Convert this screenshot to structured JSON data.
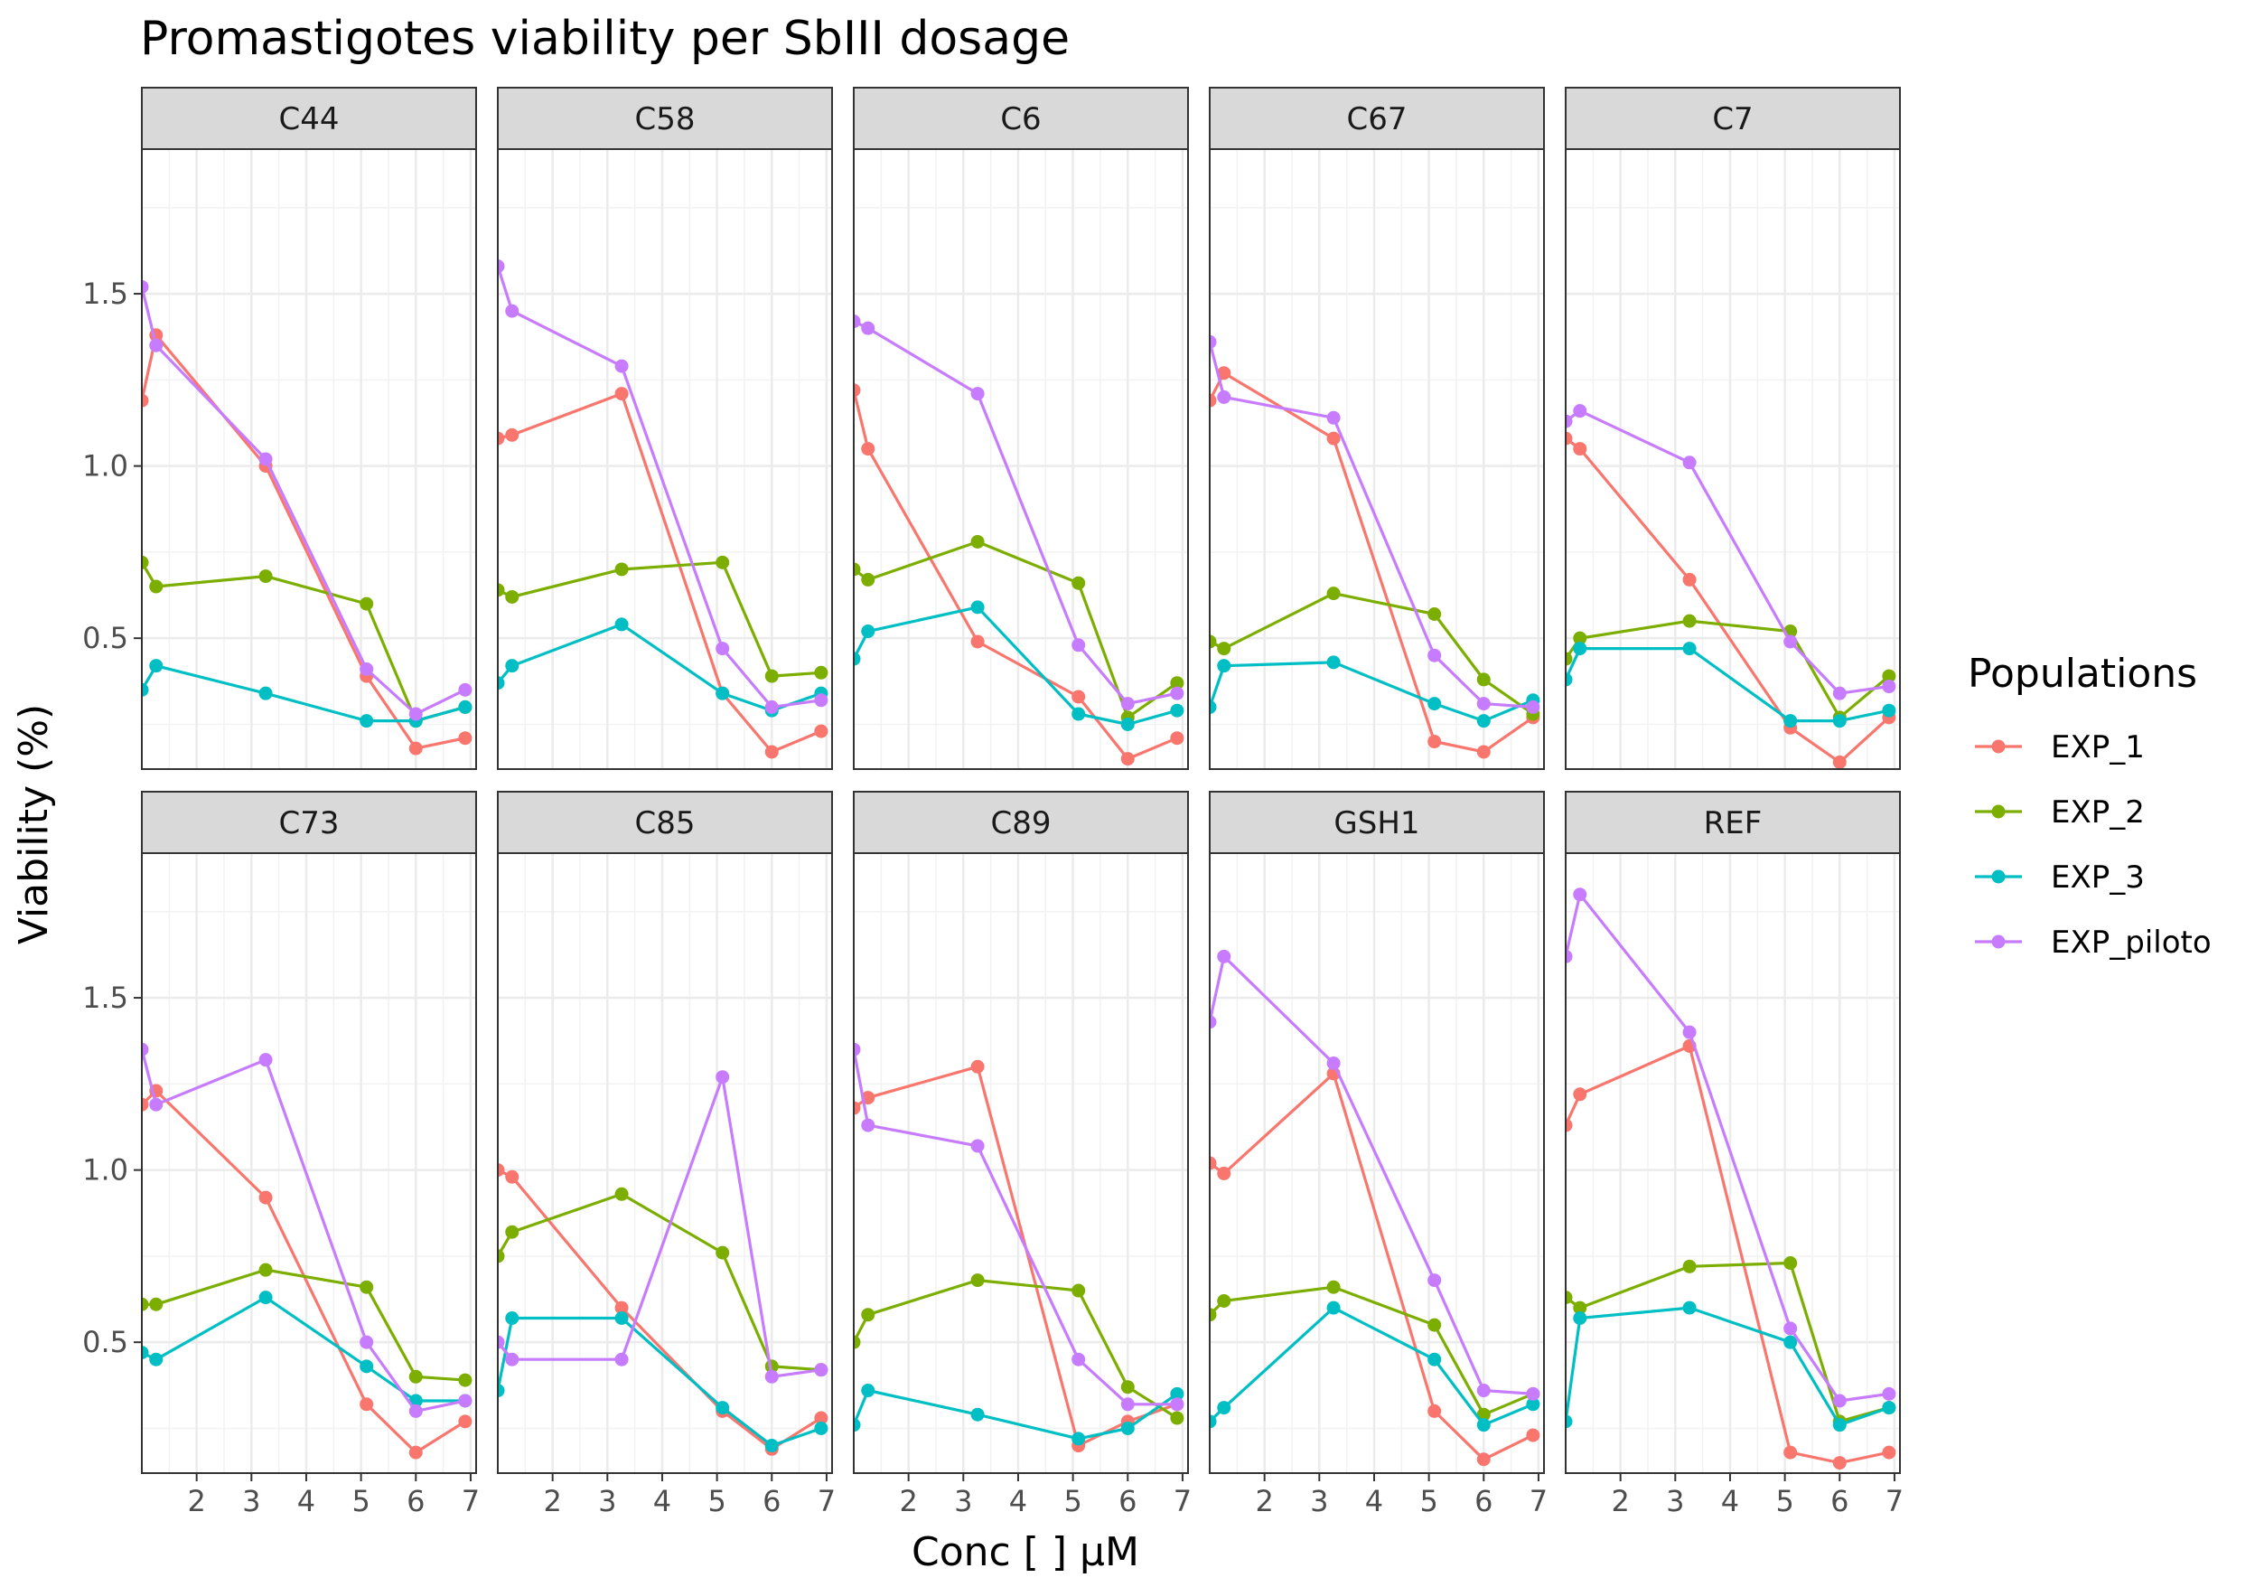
{
  "chart_data": {
    "type": "line",
    "title": "Promastigotes viability per SbIII dosage",
    "xlabel": "Conc [    ] µM",
    "ylabel": "Viability (%)",
    "xlim": [
      1.0,
      7.1
    ],
    "ylim": [
      0.12,
      1.92
    ],
    "x_ticks": [
      2,
      3,
      4,
      5,
      6,
      7
    ],
    "y_ticks": [
      0.5,
      1.0,
      1.5
    ],
    "x_tick_labels": [
      "2",
      "3",
      "4",
      "5",
      "6",
      "7"
    ],
    "y_tick_labels": [
      "0.5",
      "1.0",
      "1.5"
    ],
    "x": [
      1.0,
      1.26,
      3.26,
      5.1,
      6.0,
      6.9
    ],
    "grid": true,
    "legend": {
      "title": "Populations",
      "position": "right",
      "entries": [
        "EXP_1",
        "EXP_2",
        "EXP_3",
        "EXP_piloto"
      ],
      "colors": [
        "#F8766D",
        "#7CAE00",
        "#00BFC4",
        "#C77CFF"
      ]
    },
    "panels": [
      {
        "label": "C44",
        "series": [
          {
            "name": "EXP_1",
            "values": [
              1.19,
              1.38,
              1.0,
              0.39,
              0.18,
              0.21
            ]
          },
          {
            "name": "EXP_2",
            "values": [
              0.72,
              0.65,
              0.68,
              0.6,
              0.26,
              0.3
            ]
          },
          {
            "name": "EXP_3",
            "values": [
              0.35,
              0.42,
              0.34,
              0.26,
              0.26,
              0.3
            ]
          },
          {
            "name": "EXP_piloto",
            "values": [
              1.52,
              1.35,
              1.02,
              0.41,
              0.28,
              0.35
            ]
          }
        ]
      },
      {
        "label": "C58",
        "series": [
          {
            "name": "EXP_1",
            "values": [
              1.08,
              1.09,
              1.21,
              0.34,
              0.17,
              0.23
            ]
          },
          {
            "name": "EXP_2",
            "values": [
              0.64,
              0.62,
              0.7,
              0.72,
              0.39,
              0.4
            ]
          },
          {
            "name": "EXP_3",
            "values": [
              0.37,
              0.42,
              0.54,
              0.34,
              0.29,
              0.34
            ]
          },
          {
            "name": "EXP_piloto",
            "values": [
              1.58,
              1.45,
              1.29,
              0.47,
              0.3,
              0.32
            ]
          }
        ]
      },
      {
        "label": "C6",
        "series": [
          {
            "name": "EXP_1",
            "values": [
              1.22,
              1.05,
              0.49,
              0.33,
              0.15,
              0.21
            ]
          },
          {
            "name": "EXP_2",
            "values": [
              0.7,
              0.67,
              0.78,
              0.66,
              0.27,
              0.37
            ]
          },
          {
            "name": "EXP_3",
            "values": [
              0.44,
              0.52,
              0.59,
              0.28,
              0.25,
              0.29
            ]
          },
          {
            "name": "EXP_piloto",
            "values": [
              1.42,
              1.4,
              1.21,
              0.48,
              0.31,
              0.34
            ]
          }
        ]
      },
      {
        "label": "C67",
        "series": [
          {
            "name": "EXP_1",
            "values": [
              1.19,
              1.27,
              1.08,
              0.2,
              0.17,
              0.27
            ]
          },
          {
            "name": "EXP_2",
            "values": [
              0.49,
              0.47,
              0.63,
              0.57,
              0.38,
              0.28
            ]
          },
          {
            "name": "EXP_3",
            "values": [
              0.3,
              0.42,
              0.43,
              0.31,
              0.26,
              0.32
            ]
          },
          {
            "name": "EXP_piloto",
            "values": [
              1.36,
              1.2,
              1.14,
              0.45,
              0.31,
              0.3
            ]
          }
        ]
      },
      {
        "label": "C7",
        "series": [
          {
            "name": "EXP_1",
            "values": [
              1.08,
              1.05,
              0.67,
              0.24,
              0.14,
              0.27
            ]
          },
          {
            "name": "EXP_2",
            "values": [
              0.44,
              0.5,
              0.55,
              0.52,
              0.27,
              0.39
            ]
          },
          {
            "name": "EXP_3",
            "values": [
              0.38,
              0.47,
              0.47,
              0.26,
              0.26,
              0.29
            ]
          },
          {
            "name": "EXP_piloto",
            "values": [
              1.13,
              1.16,
              1.01,
              0.49,
              0.34,
              0.36
            ]
          }
        ]
      },
      {
        "label": "C73",
        "series": [
          {
            "name": "EXP_1",
            "values": [
              1.19,
              1.23,
              0.92,
              0.32,
              0.18,
              0.27
            ]
          },
          {
            "name": "EXP_2",
            "values": [
              0.61,
              0.61,
              0.71,
              0.66,
              0.4,
              0.39
            ]
          },
          {
            "name": "EXP_3",
            "values": [
              0.47,
              0.45,
              0.63,
              0.43,
              0.33,
              0.33
            ]
          },
          {
            "name": "EXP_piloto",
            "values": [
              1.35,
              1.19,
              1.32,
              0.5,
              0.3,
              0.33
            ]
          }
        ]
      },
      {
        "label": "C85",
        "series": [
          {
            "name": "EXP_1",
            "values": [
              1.0,
              0.98,
              0.6,
              0.3,
              0.19,
              0.28
            ]
          },
          {
            "name": "EXP_2",
            "values": [
              0.75,
              0.82,
              0.93,
              0.76,
              0.43,
              0.42
            ]
          },
          {
            "name": "EXP_3",
            "values": [
              0.36,
              0.57,
              0.57,
              0.31,
              0.2,
              0.25
            ]
          },
          {
            "name": "EXP_piloto",
            "values": [
              0.5,
              0.45,
              0.45,
              1.27,
              0.4,
              0.42
            ]
          }
        ]
      },
      {
        "label": "C89",
        "series": [
          {
            "name": "EXP_1",
            "values": [
              1.18,
              1.21,
              1.3,
              0.2,
              0.27,
              0.32
            ]
          },
          {
            "name": "EXP_2",
            "values": [
              0.5,
              0.58,
              0.68,
              0.65,
              0.37,
              0.28
            ]
          },
          {
            "name": "EXP_3",
            "values": [
              0.26,
              0.36,
              0.29,
              0.22,
              0.25,
              0.35
            ]
          },
          {
            "name": "EXP_piloto",
            "values": [
              1.35,
              1.13,
              1.07,
              0.45,
              0.32,
              0.32
            ]
          }
        ]
      },
      {
        "label": "GSH1",
        "series": [
          {
            "name": "EXP_1",
            "values": [
              1.02,
              0.99,
              1.28,
              0.3,
              0.16,
              0.23
            ]
          },
          {
            "name": "EXP_2",
            "values": [
              0.58,
              0.62,
              0.66,
              0.55,
              0.29,
              0.35
            ]
          },
          {
            "name": "EXP_3",
            "values": [
              0.27,
              0.31,
              0.6,
              0.45,
              0.26,
              0.32
            ]
          },
          {
            "name": "EXP_piloto",
            "values": [
              1.43,
              1.62,
              1.31,
              0.68,
              0.36,
              0.35
            ]
          }
        ]
      },
      {
        "label": "REF",
        "series": [
          {
            "name": "EXP_1",
            "values": [
              1.13,
              1.22,
              1.36,
              0.18,
              0.15,
              0.18
            ]
          },
          {
            "name": "EXP_2",
            "values": [
              0.63,
              0.6,
              0.72,
              0.73,
              0.27,
              0.31
            ]
          },
          {
            "name": "EXP_3",
            "values": [
              0.27,
              0.57,
              0.6,
              0.5,
              0.26,
              0.31
            ]
          },
          {
            "name": "EXP_piloto",
            "values": [
              1.62,
              1.8,
              1.4,
              0.54,
              0.33,
              0.35
            ]
          }
        ]
      }
    ]
  }
}
